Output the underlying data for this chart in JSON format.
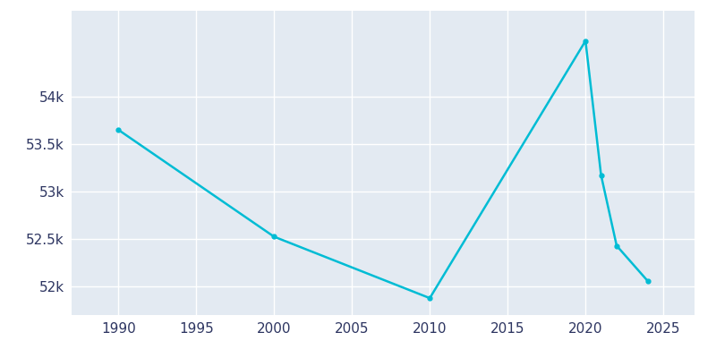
{
  "years": [
    1990,
    2000,
    2010,
    2020,
    2021,
    2022,
    2024
  ],
  "population": [
    53648,
    52524,
    51878,
    54583,
    53170,
    52429,
    52057
  ],
  "line_color": "#00BCD4",
  "marker": "o",
  "marker_size": 3.5,
  "linewidth": 1.8,
  "fig_bg_color": "#ffffff",
  "plot_bg_color": "#E3EAF2",
  "grid_color": "#ffffff",
  "tick_color": "#2d3561",
  "xlim": [
    1987,
    2027
  ],
  "ylim": [
    51700,
    54900
  ],
  "xticks": [
    1990,
    1995,
    2000,
    2005,
    2010,
    2015,
    2020,
    2025
  ],
  "yticks": [
    52000,
    52500,
    53000,
    53500,
    54000
  ],
  "ytick_labels": [
    "52k",
    "52.5k",
    "53k",
    "53.5k",
    "54k"
  ]
}
